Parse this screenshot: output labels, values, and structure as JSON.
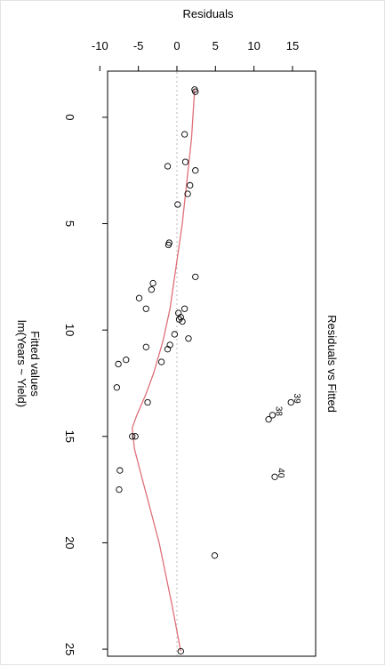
{
  "chart_data": {
    "type": "scatter",
    "title": "Residuals vs Fitted",
    "xlabel": "Fitted values",
    "xlabel_sub": "lm(Years ~ Yield)",
    "ylabel": "Residuals",
    "orientation": "rotated-90",
    "xlim": [
      -1.5,
      26
    ],
    "ylim": [
      -10,
      17
    ],
    "x_ticks": [
      0,
      5,
      10,
      15,
      20,
      25
    ],
    "y_ticks": [
      -10,
      -5,
      0,
      5,
      10,
      15
    ],
    "zero_line": 0,
    "zero_line_color": "#bbbbbb",
    "smooth_color": "#e0707a",
    "point_color": "#000000",
    "points": [
      {
        "x": -1.3,
        "y": 2.3
      },
      {
        "x": -1.2,
        "y": 2.4
      },
      {
        "x": 0.8,
        "y": 1.0
      },
      {
        "x": 2.1,
        "y": 1.1
      },
      {
        "x": 2.3,
        "y": -1.2
      },
      {
        "x": 2.5,
        "y": 2.4
      },
      {
        "x": 3.2,
        "y": 1.7
      },
      {
        "x": 3.6,
        "y": 1.4
      },
      {
        "x": 4.1,
        "y": 0.1
      },
      {
        "x": 5.9,
        "y": -1.0
      },
      {
        "x": 6.0,
        "y": -1.1
      },
      {
        "x": 7.5,
        "y": 2.4
      },
      {
        "x": 7.8,
        "y": -3.1
      },
      {
        "x": 8.1,
        "y": -3.3
      },
      {
        "x": 8.5,
        "y": -4.9
      },
      {
        "x": 9.0,
        "y": -4.0
      },
      {
        "x": 9.0,
        "y": 1.0
      },
      {
        "x": 9.2,
        "y": 0.2
      },
      {
        "x": 9.4,
        "y": 0.5
      },
      {
        "x": 9.5,
        "y": 0.3
      },
      {
        "x": 9.6,
        "y": 0.7
      },
      {
        "x": 10.2,
        "y": -0.3
      },
      {
        "x": 10.4,
        "y": 1.5
      },
      {
        "x": 10.7,
        "y": -0.9
      },
      {
        "x": 10.8,
        "y": -4.0
      },
      {
        "x": 10.9,
        "y": -1.2
      },
      {
        "x": 11.4,
        "y": -6.6
      },
      {
        "x": 11.5,
        "y": -2.0
      },
      {
        "x": 11.6,
        "y": -7.6
      },
      {
        "x": 12.7,
        "y": -7.8
      },
      {
        "x": 13.4,
        "y": -3.8
      },
      {
        "x": 13.4,
        "y": 14.8,
        "label": "39"
      },
      {
        "x": 14.0,
        "y": 12.4,
        "label": "38"
      },
      {
        "x": 14.2,
        "y": 11.9
      },
      {
        "x": 15.0,
        "y": -5.8
      },
      {
        "x": 15.0,
        "y": -5.4
      },
      {
        "x": 16.6,
        "y": -7.4
      },
      {
        "x": 16.9,
        "y": 12.7,
        "label": "40"
      },
      {
        "x": 17.5,
        "y": -7.5
      },
      {
        "x": 20.6,
        "y": 4.9
      },
      {
        "x": 25.1,
        "y": 0.5
      }
    ],
    "smooth_line": [
      {
        "x": -1.3,
        "y": 2.3
      },
      {
        "x": 1.0,
        "y": 1.9
      },
      {
        "x": 3.0,
        "y": 1.3
      },
      {
        "x": 5.0,
        "y": 0.7
      },
      {
        "x": 7.0,
        "y": -0.1
      },
      {
        "x": 9.0,
        "y": -0.9
      },
      {
        "x": 10.5,
        "y": -1.8
      },
      {
        "x": 12.0,
        "y": -3.0
      },
      {
        "x": 13.0,
        "y": -4.0
      },
      {
        "x": 14.0,
        "y": -5.2
      },
      {
        "x": 14.6,
        "y": -5.8
      },
      {
        "x": 15.6,
        "y": -5.5
      },
      {
        "x": 17.0,
        "y": -4.5
      },
      {
        "x": 20.0,
        "y": -2.3
      },
      {
        "x": 23.0,
        "y": -0.6
      },
      {
        "x": 25.1,
        "y": 0.5
      }
    ]
  }
}
